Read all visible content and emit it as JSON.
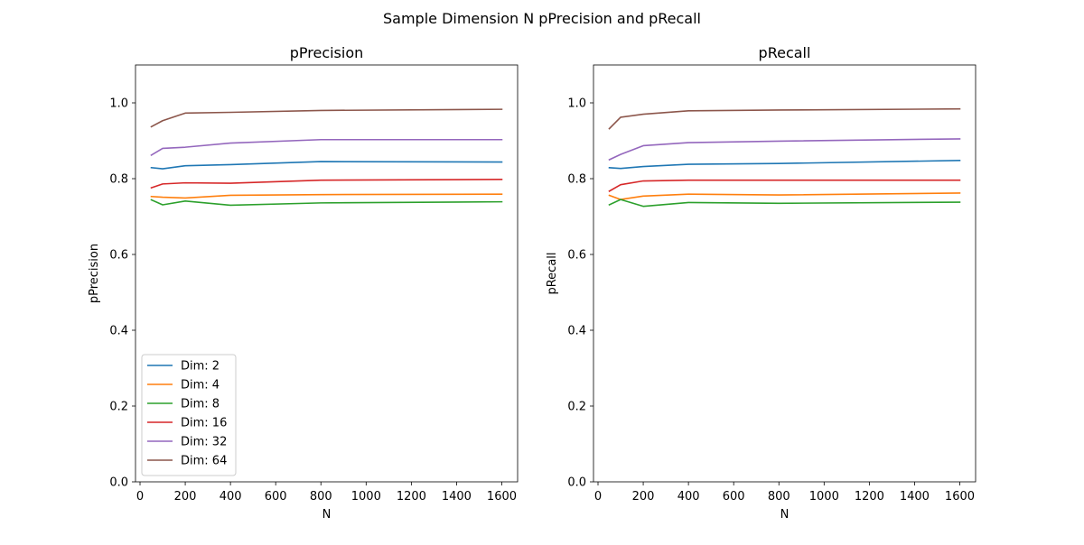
{
  "figure": {
    "title": "Sample Dimension N pPrecision and pRecall"
  },
  "chart_data": [
    {
      "type": "line",
      "title": "pPrecision",
      "xlabel": "N",
      "ylabel": "pPrecision",
      "xlim": [
        -20,
        1670
      ],
      "ylim": [
        0,
        1.1
      ],
      "xticks": [
        0,
        200,
        400,
        600,
        800,
        1000,
        1200,
        1400,
        1600
      ],
      "yticks": [
        0.0,
        0.2,
        0.4,
        0.6,
        0.8,
        1.0
      ],
      "grid": false,
      "legend": "lower-left",
      "x": [
        50,
        100,
        200,
        400,
        800,
        1600
      ],
      "series": [
        {
          "name": "Dim: 2",
          "color": "#1f77b4",
          "values": [
            0.829,
            0.826,
            0.834,
            0.837,
            0.845,
            0.844
          ]
        },
        {
          "name": "Dim: 4",
          "color": "#ff7f0e",
          "values": [
            0.753,
            0.751,
            0.749,
            0.756,
            0.758,
            0.759
          ]
        },
        {
          "name": "Dim: 8",
          "color": "#2ca02c",
          "values": [
            0.744,
            0.731,
            0.741,
            0.73,
            0.736,
            0.739
          ]
        },
        {
          "name": "Dim: 16",
          "color": "#d62728",
          "values": [
            0.776,
            0.786,
            0.789,
            0.788,
            0.796,
            0.798
          ]
        },
        {
          "name": "Dim: 32",
          "color": "#9467bd",
          "values": [
            0.862,
            0.88,
            0.883,
            0.894,
            0.903,
            0.903
          ]
        },
        {
          "name": "Dim: 64",
          "color": "#8c564b",
          "values": [
            0.937,
            0.953,
            0.973,
            0.975,
            0.98,
            0.983
          ]
        }
      ]
    },
    {
      "type": "line",
      "title": "pRecall",
      "xlabel": "N",
      "ylabel": "pRecall",
      "xlim": [
        -20,
        1670
      ],
      "ylim": [
        0,
        1.1
      ],
      "xticks": [
        0,
        200,
        400,
        600,
        800,
        1000,
        1200,
        1400,
        1600
      ],
      "yticks": [
        0.0,
        0.2,
        0.4,
        0.6,
        0.8,
        1.0
      ],
      "grid": false,
      "legend": "none",
      "x": [
        50,
        100,
        200,
        400,
        800,
        1600
      ],
      "series": [
        {
          "name": "Dim: 2",
          "color": "#1f77b4",
          "values": [
            0.829,
            0.827,
            0.832,
            0.838,
            0.84,
            0.848
          ]
        },
        {
          "name": "Dim: 4",
          "color": "#ff7f0e",
          "values": [
            0.756,
            0.745,
            0.754,
            0.759,
            0.757,
            0.762
          ]
        },
        {
          "name": "Dim: 8",
          "color": "#2ca02c",
          "values": [
            0.731,
            0.745,
            0.727,
            0.737,
            0.735,
            0.738
          ]
        },
        {
          "name": "Dim: 16",
          "color": "#d62728",
          "values": [
            0.767,
            0.784,
            0.794,
            0.796,
            0.796,
            0.796
          ]
        },
        {
          "name": "Dim: 32",
          "color": "#9467bd",
          "values": [
            0.85,
            0.864,
            0.887,
            0.895,
            0.899,
            0.905
          ]
        },
        {
          "name": "Dim: 64",
          "color": "#8c564b",
          "values": [
            0.932,
            0.962,
            0.97,
            0.979,
            0.981,
            0.984
          ]
        }
      ]
    }
  ]
}
